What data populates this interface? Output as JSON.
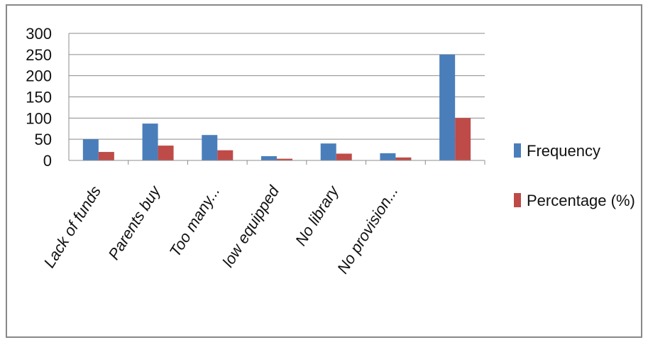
{
  "chart_data": {
    "type": "bar",
    "categories": [
      "Lack of funds",
      "Parents buy",
      "Too many...",
      "low equipped",
      "No library",
      "No provision...",
      ""
    ],
    "series": [
      {
        "name": "Frequency",
        "values": [
          50,
          87,
          60,
          10,
          40,
          17,
          250
        ],
        "color": "#4a7ebb"
      },
      {
        "name": "Percentage (%)",
        "values": [
          20,
          35,
          24,
          4,
          16,
          7,
          100
        ],
        "color": "#be4b48"
      }
    ],
    "yticks": [
      0,
      50,
      100,
      150,
      200,
      250,
      300
    ],
    "ylim": [
      0,
      300
    ],
    "grid": true,
    "legend_position": "right"
  }
}
